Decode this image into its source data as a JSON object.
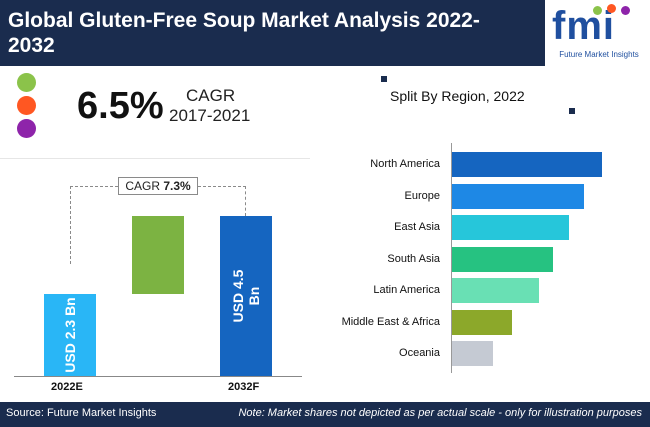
{
  "header": {
    "title": "Global Gluten-Free Soup Market Analysis 2022-2032",
    "logo_text": "fmi",
    "logo_subtitle": "Future Market Insights"
  },
  "cagr_block": {
    "value": "6.5%",
    "label": "CAGR",
    "period": "2017-2021",
    "dot_colors": [
      "#8bc34a",
      "#ff5722",
      "#8e24aa"
    ]
  },
  "forecast": {
    "cagr_label": "CAGR",
    "cagr_value": "7.3%",
    "colors": {
      "start": "#29b6f6",
      "end": "#1565c0",
      "growth": "#7cb342"
    }
  },
  "chart_data": [
    {
      "type": "bar",
      "categories": [
        "2022E",
        "2032F"
      ],
      "values": [
        2.3,
        4.5
      ],
      "value_labels": [
        "USD 2.3 Bn",
        "USD 4.5 Bn"
      ],
      "ylim": [
        0,
        5
      ]
    },
    {
      "type": "bar",
      "orientation": "horizontal",
      "title": "Split By Region, 2022",
      "categories": [
        "North America",
        "Europe",
        "East Asia",
        "South Asia",
        "Latin America",
        "Middle East & Africa",
        "Oceania"
      ],
      "values": [
        100,
        88,
        78,
        67,
        58,
        40,
        27
      ],
      "colors": [
        "#1565c0",
        "#1e88e5",
        "#26c6da",
        "#26c281",
        "#69e0b4",
        "#8ca82a",
        "#c5cad3"
      ]
    }
  ],
  "footer": {
    "source": "Source: Future Market Insights",
    "note": "Note: Market shares not depicted as per actual scale - only for illustration purposes"
  }
}
